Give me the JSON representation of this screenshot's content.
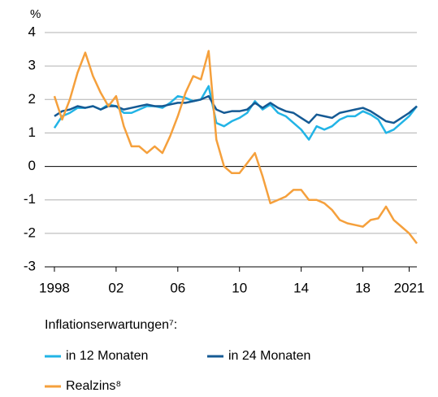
{
  "chart_data": {
    "type": "line",
    "y_label": "%",
    "legend_title": "Inflationserwartungen⁷:",
    "x": [
      1998,
      1998.5,
      1999,
      1999.5,
      2000,
      2000.5,
      2001,
      2001.5,
      2002,
      2002.5,
      2003,
      2003.5,
      2004,
      2004.5,
      2005,
      2005.5,
      2006,
      2006.5,
      2007,
      2007.5,
      2008,
      2008.5,
      2009,
      2009.5,
      2010,
      2010.5,
      2011,
      2011.5,
      2012,
      2012.5,
      2013,
      2013.5,
      2014,
      2014.5,
      2015,
      2015.5,
      2016,
      2016.5,
      2017,
      2017.5,
      2018,
      2018.5,
      2019,
      2019.5,
      2020,
      2020.5,
      2021,
      2021.5
    ],
    "series": [
      {
        "name": "in 12 Monaten",
        "color": "#22b4e6",
        "values": [
          1.15,
          1.5,
          1.6,
          1.75,
          1.75,
          1.8,
          1.7,
          1.85,
          1.8,
          1.6,
          1.6,
          1.7,
          1.8,
          1.8,
          1.75,
          1.9,
          2.1,
          2.05,
          1.95,
          2.0,
          2.4,
          1.3,
          1.2,
          1.35,
          1.45,
          1.6,
          1.95,
          1.7,
          1.85,
          1.6,
          1.5,
          1.3,
          1.1,
          0.8,
          1.2,
          1.1,
          1.2,
          1.4,
          1.5,
          1.5,
          1.65,
          1.55,
          1.4,
          1.0,
          1.1,
          1.3,
          1.5,
          1.8
        ]
      },
      {
        "name": "in 24 Monaten",
        "color": "#155a94",
        "values": [
          1.5,
          1.65,
          1.7,
          1.8,
          1.75,
          1.8,
          1.7,
          1.8,
          1.8,
          1.7,
          1.75,
          1.8,
          1.85,
          1.8,
          1.8,
          1.85,
          1.9,
          1.9,
          1.95,
          2.0,
          2.1,
          1.7,
          1.6,
          1.65,
          1.65,
          1.7,
          1.9,
          1.75,
          1.9,
          1.75,
          1.65,
          1.6,
          1.45,
          1.3,
          1.55,
          1.5,
          1.45,
          1.6,
          1.65,
          1.7,
          1.75,
          1.65,
          1.5,
          1.35,
          1.3,
          1.45,
          1.6,
          1.8
        ]
      },
      {
        "name": "Realzins⁸",
        "color": "#f5a03c",
        "values": [
          2.1,
          1.4,
          2.0,
          2.8,
          3.4,
          2.7,
          2.2,
          1.8,
          2.1,
          1.2,
          0.6,
          0.6,
          0.4,
          0.6,
          0.4,
          0.9,
          1.5,
          2.2,
          2.7,
          2.6,
          3.45,
          0.8,
          0.0,
          -0.2,
          -0.2,
          0.1,
          0.4,
          -0.3,
          -1.1,
          -1.0,
          -0.9,
          -0.7,
          -0.7,
          -1.0,
          -1.0,
          -1.1,
          -1.3,
          -1.6,
          -1.7,
          -1.75,
          -1.8,
          -1.6,
          -1.55,
          -1.2,
          -1.6,
          -1.8,
          -2.0,
          -2.3
        ]
      }
    ],
    "xlim": [
      1997.37,
      2021.5
    ],
    "xticks": [
      1998,
      {
        "value": 2002,
        "label": "02"
      },
      {
        "value": 2006,
        "label": "06"
      },
      {
        "value": 2010,
        "label": "10"
      },
      {
        "value": 2014,
        "label": "14"
      },
      {
        "value": 2018,
        "label": "18"
      },
      2021
    ],
    "ylim": [
      -3,
      4
    ],
    "yticks": [
      -3,
      -2,
      -1,
      0,
      1,
      2,
      3,
      4
    ],
    "grid": true
  }
}
